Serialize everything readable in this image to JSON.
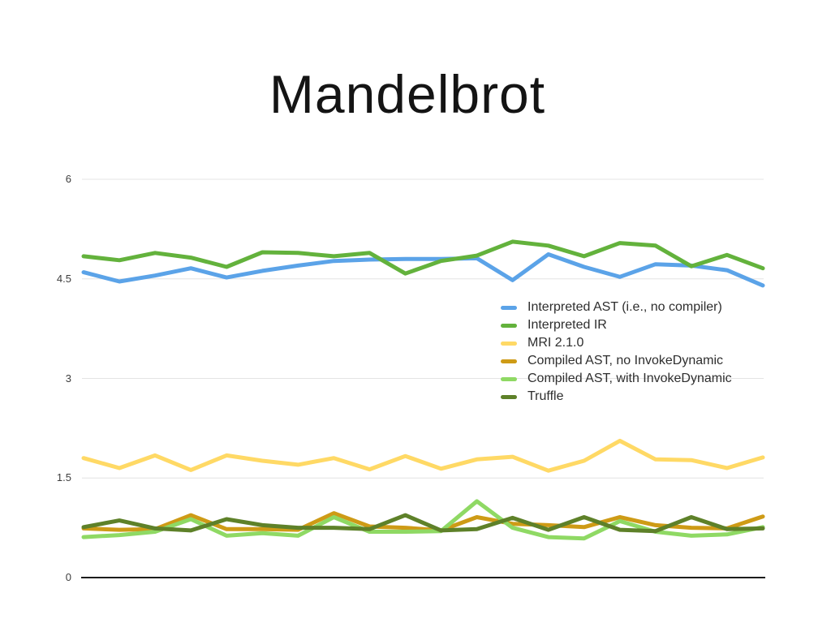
{
  "title": "Mandelbrot",
  "y_axis": {
    "ticks": [
      {
        "label": "6",
        "value": 6
      },
      {
        "label": "4.5",
        "value": 4.5
      },
      {
        "label": "3",
        "value": 3
      },
      {
        "label": "1.5",
        "value": 1.5
      },
      {
        "label": "0",
        "value": 0
      }
    ]
  },
  "chart_data": {
    "type": "line",
    "title": "Mandelbrot",
    "xlabel": "",
    "ylabel": "",
    "ylim": [
      0,
      6
    ],
    "yticks": [
      0,
      1.5,
      3,
      4.5,
      6
    ],
    "grid": true,
    "grid_color": "#e4e4e4",
    "axis_color": "#1c1c1c",
    "legend_position": "center-right",
    "x_axis": {
      "labels_visible": false,
      "points": 20
    },
    "series": [
      {
        "name": "Interpreted AST (i.e., no compiler)",
        "color": "#5BA3E8",
        "values": [
          4.6,
          4.46,
          4.55,
          4.66,
          4.52,
          4.62,
          4.7,
          4.77,
          4.79,
          4.8,
          4.8,
          4.81,
          4.48,
          4.87,
          4.68,
          4.53,
          4.72,
          4.7,
          4.63,
          4.4
        ]
      },
      {
        "name": "Interpreted IR",
        "color": "#63B23C",
        "values": [
          4.84,
          4.78,
          4.89,
          4.82,
          4.68,
          4.9,
          4.89,
          4.84,
          4.89,
          4.58,
          4.77,
          4.85,
          5.06,
          5.0,
          4.84,
          5.04,
          5.0,
          4.69,
          4.86,
          4.66
        ]
      },
      {
        "name": "MRI 2.1.0",
        "color": "#FFD965",
        "values": [
          1.8,
          1.65,
          1.84,
          1.62,
          1.84,
          1.76,
          1.7,
          1.8,
          1.63,
          1.83,
          1.64,
          1.78,
          1.82,
          1.61,
          1.76,
          2.06,
          1.78,
          1.77,
          1.65,
          1.81
        ]
      },
      {
        "name": "Compiled AST, no InvokeDynamic",
        "color": "#CE9B16",
        "values": [
          0.74,
          0.72,
          0.73,
          0.94,
          0.73,
          0.73,
          0.72,
          0.97,
          0.77,
          0.75,
          0.71,
          0.91,
          0.81,
          0.79,
          0.76,
          0.91,
          0.79,
          0.75,
          0.74,
          0.92
        ]
      },
      {
        "name": "Compiled AST, with InvokeDynamic",
        "color": "#8FD964",
        "values": [
          0.61,
          0.64,
          0.69,
          0.88,
          0.63,
          0.67,
          0.63,
          0.91,
          0.69,
          0.69,
          0.7,
          1.15,
          0.75,
          0.61,
          0.59,
          0.85,
          0.69,
          0.63,
          0.65,
          0.76
        ]
      },
      {
        "name": "Truffle",
        "color": "#5E8129",
        "values": [
          0.76,
          0.86,
          0.74,
          0.71,
          0.88,
          0.79,
          0.75,
          0.75,
          0.73,
          0.94,
          0.71,
          0.73,
          0.9,
          0.72,
          0.91,
          0.72,
          0.7,
          0.91,
          0.73,
          0.74
        ]
      }
    ]
  }
}
